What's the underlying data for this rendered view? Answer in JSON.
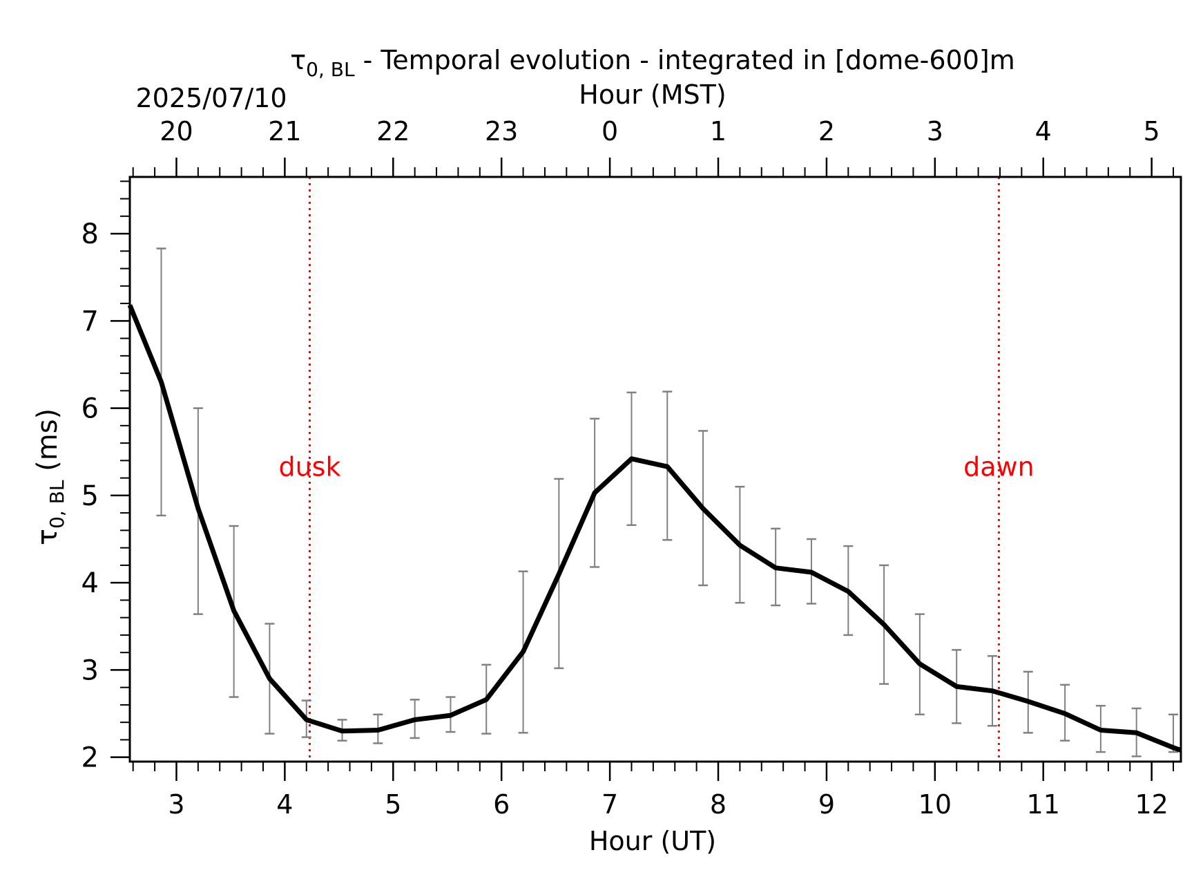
{
  "chart_data": {
    "type": "line",
    "title_main": "τ",
    "title_sub": "0, BL",
    "title_rest": " - Temporal evolution - integrated in [dome-600]m",
    "date_label": "2025/07/10",
    "top_axis_label": "Hour (MST)",
    "xlabel": "Hour (UT)",
    "ylabel_main": "τ",
    "ylabel_sub": "0, BL",
    "ylabel_rest": " (ms)",
    "xlim": [
      2.57,
      12.27
    ],
    "ylim": [
      1.95,
      8.65
    ],
    "x_ticks": [
      3,
      4,
      5,
      6,
      7,
      8,
      9,
      10,
      11,
      12
    ],
    "x_tick_labels": [
      "3",
      "4",
      "5",
      "6",
      "7",
      "8",
      "9",
      "10",
      "11",
      "12"
    ],
    "y_ticks": [
      2,
      3,
      4,
      5,
      6,
      7,
      8
    ],
    "y_tick_labels": [
      "2",
      "3",
      "4",
      "5",
      "6",
      "7",
      "8"
    ],
    "top_ticks_ut": [
      3,
      4,
      5,
      6,
      7,
      8,
      9,
      10,
      11,
      12
    ],
    "top_tick_labels": [
      "20",
      "21",
      "22",
      "23",
      "0",
      "1",
      "2",
      "3",
      "4",
      "5"
    ],
    "series": [
      {
        "x": [
          2.57,
          2.86,
          3.2,
          3.53,
          3.86,
          4.2,
          4.53,
          4.86,
          5.2,
          5.53,
          5.86,
          6.2,
          6.53,
          6.86,
          7.2,
          7.53,
          7.86,
          8.2,
          8.53,
          8.86,
          9.2,
          9.53,
          9.86,
          10.2,
          10.53,
          10.86,
          11.2,
          11.53,
          11.86,
          12.2,
          12.27
        ],
        "y": [
          7.18,
          6.3,
          4.85,
          3.68,
          2.9,
          2.43,
          2.3,
          2.31,
          2.43,
          2.48,
          2.66,
          3.21,
          4.1,
          5.03,
          5.42,
          5.33,
          4.85,
          4.43,
          4.17,
          4.12,
          3.9,
          3.52,
          3.07,
          2.81,
          2.76,
          2.64,
          2.5,
          2.31,
          2.28,
          2.11,
          2.08
        ],
        "err_low": [
          null,
          4.77,
          3.64,
          2.69,
          2.27,
          2.23,
          2.19,
          2.16,
          2.22,
          2.29,
          2.27,
          2.28,
          3.02,
          4.18,
          4.66,
          4.49,
          3.97,
          3.77,
          3.74,
          3.76,
          3.4,
          2.84,
          2.49,
          2.39,
          2.36,
          2.28,
          2.19,
          2.06,
          2.01,
          2.06,
          null
        ],
        "err_high": [
          null,
          7.83,
          6.0,
          4.65,
          3.53,
          2.65,
          2.43,
          2.49,
          2.66,
          2.69,
          3.06,
          4.13,
          5.19,
          5.88,
          6.18,
          6.19,
          5.74,
          5.1,
          4.62,
          4.5,
          4.42,
          4.2,
          3.64,
          3.23,
          3.16,
          2.98,
          2.83,
          2.59,
          2.56,
          2.49,
          null
        ]
      }
    ],
    "vlines": [
      {
        "x": 4.23,
        "label": "dusk",
        "label_y": 5.32,
        "color": "#ff0000"
      },
      {
        "x": 10.59,
        "label": "dawn",
        "label_y": 5.32,
        "color": "#ff0000"
      }
    ],
    "colors": {
      "line": "#000000",
      "errorbar": "#808080",
      "marker": "#ff0000"
    },
    "grid": false
  }
}
